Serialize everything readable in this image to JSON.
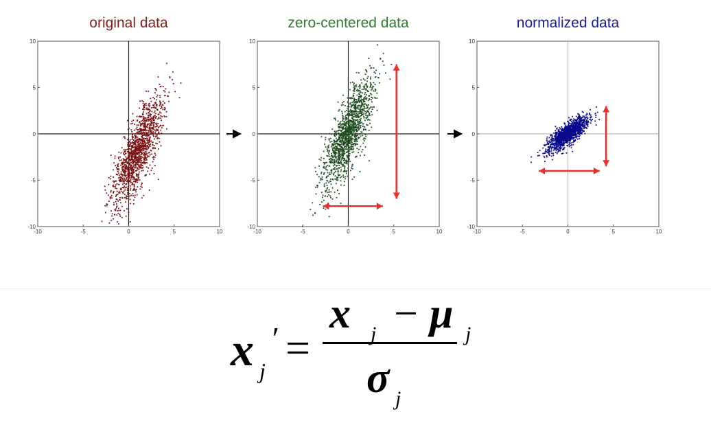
{
  "panels": [
    {
      "title": "original data",
      "title_color": "#8b1a1a",
      "point_color": "#7a1010"
    },
    {
      "title": "zero-centered data",
      "title_color": "#2e7d2e",
      "point_color": "#1f4d1f"
    },
    {
      "title": "normalized data",
      "title_color": "#1a1aa0",
      "point_color": "#0a0a8c"
    }
  ],
  "arrow_color": "#e8302a",
  "formula": {
    "lhs": "x",
    "lhs_prime": "′",
    "lhs_sub": "j",
    "num_x": "x",
    "num_sub1": "j",
    "num_minus": "−",
    "num_mu": "μ",
    "num_sub2": "j",
    "den": "σ",
    "den_sub": "j"
  },
  "chart_data": [
    {
      "type": "scatter",
      "title": "original data",
      "xlim": [
        -10,
        10
      ],
      "ylim": [
        -10,
        10
      ],
      "xticks": [
        "-10",
        "-5",
        "0",
        "5",
        "10"
      ],
      "yticks": [
        "-10",
        "-5",
        "0",
        "5",
        "10"
      ],
      "distribution": {
        "mean_x": 1,
        "mean_y": -2,
        "std_major": 3.2,
        "std_minor": 0.8,
        "angle_deg": 68
      },
      "n_points": 1400
    },
    {
      "type": "scatter",
      "title": "zero-centered data",
      "xlim": [
        -10,
        10
      ],
      "ylim": [
        -10,
        10
      ],
      "xticks": [
        "-10",
        "-5",
        "0",
        "5",
        "10"
      ],
      "yticks": [
        "-10",
        "-5",
        "0",
        "5",
        "10"
      ],
      "distribution": {
        "mean_x": 0,
        "mean_y": 0,
        "std_major": 3.2,
        "std_minor": 0.8,
        "angle_deg": 68
      },
      "n_points": 1400
    },
    {
      "type": "scatter",
      "title": "normalized data",
      "xlim": [
        -10,
        10
      ],
      "ylim": [
        -10,
        10
      ],
      "xticks": [
        "-10",
        "-5",
        "0",
        "5",
        "10"
      ],
      "yticks": [
        "-10",
        "-5",
        "0",
        "5",
        "10"
      ],
      "distribution": {
        "mean_x": 0,
        "mean_y": 0,
        "std_major": 1.35,
        "std_minor": 0.45,
        "angle_deg": 38
      },
      "n_points": 1400
    }
  ]
}
